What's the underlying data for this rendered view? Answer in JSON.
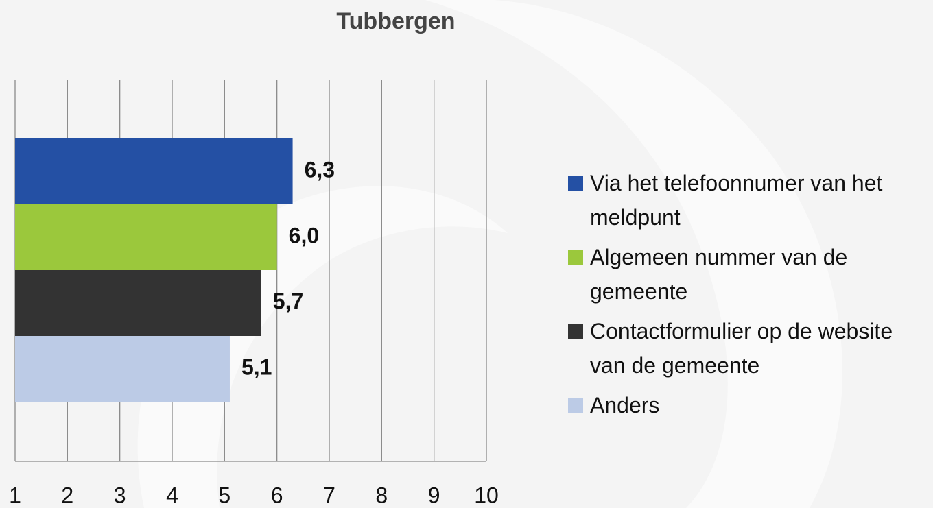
{
  "chart_data": {
    "type": "hbar",
    "title": "Tubbergen",
    "series": [
      {
        "name": "Via het telefoonnumer van het meldpunt",
        "color": "#2450a4",
        "values": [
          6.3
        ],
        "value_labels": [
          "6,3"
        ]
      },
      {
        "name": "Algemeen nummer van de gemeente",
        "color": "#9bc83c",
        "values": [
          6.0
        ],
        "value_labels": [
          "6,0"
        ]
      },
      {
        "name": "Contactformulier op de website van de gemeente",
        "color": "#333333",
        "values": [
          5.7
        ],
        "value_labels": [
          "5,7"
        ]
      },
      {
        "name": "Anders",
        "color": "#bccbe6",
        "values": [
          5.1
        ],
        "value_labels": [
          "5,1"
        ]
      }
    ],
    "xlim": [
      1,
      10
    ],
    "xticks": [
      1,
      2,
      3,
      4,
      5,
      6,
      7,
      8,
      9,
      10
    ],
    "grid": true,
    "legend": "right"
  }
}
